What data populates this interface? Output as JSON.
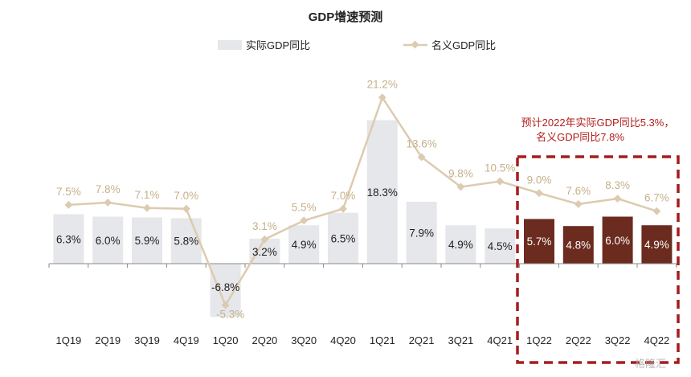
{
  "chart_data": {
    "type": "bar+line",
    "title": "GDP增速预测",
    "categories": [
      "1Q19",
      "2Q19",
      "3Q19",
      "4Q19",
      "1Q20",
      "2Q20",
      "3Q20",
      "4Q20",
      "1Q21",
      "2Q21",
      "3Q21",
      "4Q21",
      "1Q22",
      "2Q22",
      "3Q22",
      "4Q22"
    ],
    "series": [
      {
        "name": "实际GDP同比",
        "kind": "bar",
        "values": [
          6.3,
          6.0,
          5.9,
          5.8,
          -6.8,
          3.2,
          4.9,
          6.5,
          18.3,
          7.9,
          4.9,
          4.5,
          5.7,
          4.8,
          6.0,
          4.9
        ],
        "labels": [
          "6.3%",
          "6.0%",
          "5.9%",
          "5.8%",
          "-6.8%",
          "3.2%",
          "4.9%",
          "6.5%",
          "18.3%",
          "7.9%",
          "4.9%",
          "4.5%",
          "5.7%",
          "4.8%",
          "6.0%",
          "4.9%"
        ]
      },
      {
        "name": "名义GDP同比",
        "kind": "line",
        "values": [
          7.5,
          7.8,
          7.1,
          7.0,
          -5.3,
          3.1,
          5.5,
          7.0,
          21.2,
          13.6,
          9.8,
          10.5,
          9.0,
          7.6,
          8.3,
          6.7
        ],
        "labels": [
          "7.5%",
          "7.8%",
          "7.1%",
          "7.0%",
          "-5.3%",
          "3.1%",
          "5.5%",
          "7.0%",
          "21.2%",
          "13.6%",
          "9.8%",
          "10.5%",
          "9.0%",
          "7.6%",
          "8.3%",
          "6.7%"
        ]
      }
    ],
    "forecast_categories": [
      "1Q22",
      "2Q22",
      "3Q22",
      "4Q22"
    ],
    "annotation": [
      "预计2022年实际GDP同比5.3%，",
      "名义GDP同比7.8%"
    ],
    "legend_placement": "top",
    "grid": false,
    "ylim": [
      -7.5,
      23
    ],
    "colors": {
      "bar": "#e6e7ea",
      "forecast_bar": "#6b2b1f",
      "line": "#dccbb0",
      "line_label": "#c6b08a",
      "highlight": "#a51d1d",
      "annotation": "#b0201e"
    }
  },
  "watermark": "格隆汇"
}
